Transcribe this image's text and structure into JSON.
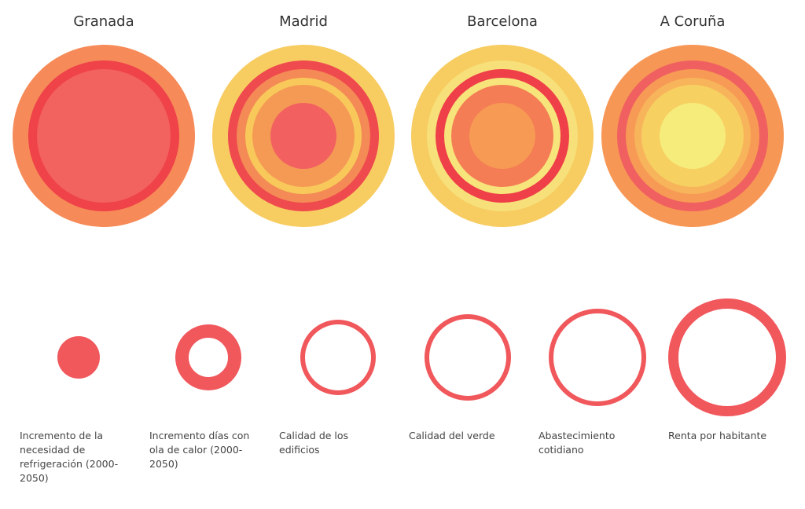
{
  "title": null,
  "cities": [
    {
      "name": "Granada",
      "rings": [
        "#f2625e",
        "#f2625e",
        "#f2625e",
        "#f2625e",
        "#ef4249",
        "#f68a58"
      ]
    },
    {
      "name": "Madrid",
      "rings": [
        "#f26160",
        "#f59a55",
        "#f8c95a",
        "#f48a55",
        "#ef4a4e",
        "#f7cd62"
      ]
    },
    {
      "name": "Barcelona",
      "rings": [
        "#f79a53",
        "#f47d55",
        "#f7e47a",
        "#ef3f48",
        "#f7e07a",
        "#f7cc60"
      ]
    },
    {
      "name": "A Coruña",
      "rings": [
        "#f6ec7c",
        "#f7d062",
        "#f7b45a",
        "#f79a55",
        "#f06060",
        "#f79755"
      ]
    }
  ],
  "indicators": [
    {
      "label": "Incremento de la necesidad de refrigeración (2000-2050)"
    },
    {
      "label": "Incremento días con ola de calor (2000-2050)"
    },
    {
      "label": "Calidad de los edificios"
    },
    {
      "label": "Calidad del verde"
    },
    {
      "label": "Abastecimiento cotidiano"
    },
    {
      "label": "Renta por habitante"
    }
  ],
  "legend_color": "#f0585c"
}
